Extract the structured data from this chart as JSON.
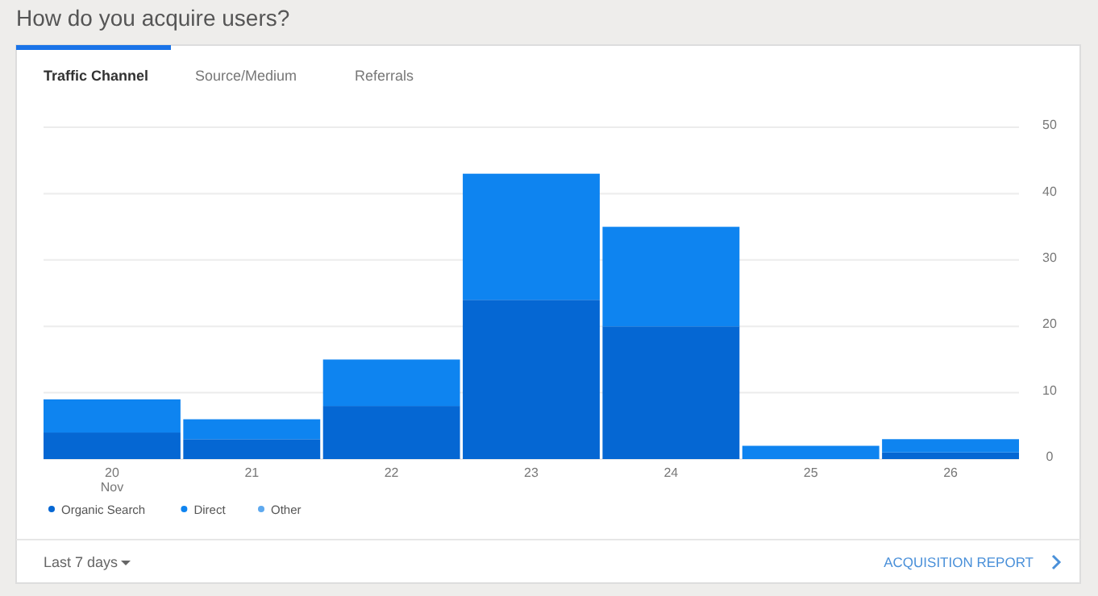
{
  "chart_data": {
    "type": "bar",
    "title": "How do you acquire users?",
    "stacked": true,
    "categories": [
      "20\nNov",
      "21",
      "22",
      "23",
      "24",
      "25",
      "26"
    ],
    "series": [
      {
        "name": "Organic Search",
        "color": "#0567d3",
        "values": [
          4,
          3,
          8,
          24,
          20,
          0,
          1
        ]
      },
      {
        "name": "Direct",
        "color": "#0e84f0",
        "values": [
          5,
          3,
          7,
          19,
          15,
          2,
          2
        ]
      },
      {
        "name": "Other",
        "color": "#5ea9ef",
        "values": [
          0,
          0,
          0,
          0,
          0,
          0,
          0
        ]
      }
    ],
    "ylim": [
      0,
      50
    ],
    "yticks": [
      0,
      10,
      20,
      30,
      40,
      50
    ],
    "grid": "y",
    "legend": "bottom left",
    "annotations": [
      "Traffic Channel",
      "Source/Medium",
      "Referrals",
      "Last 7 days",
      "ACQUISITION REPORT"
    ]
  }
}
